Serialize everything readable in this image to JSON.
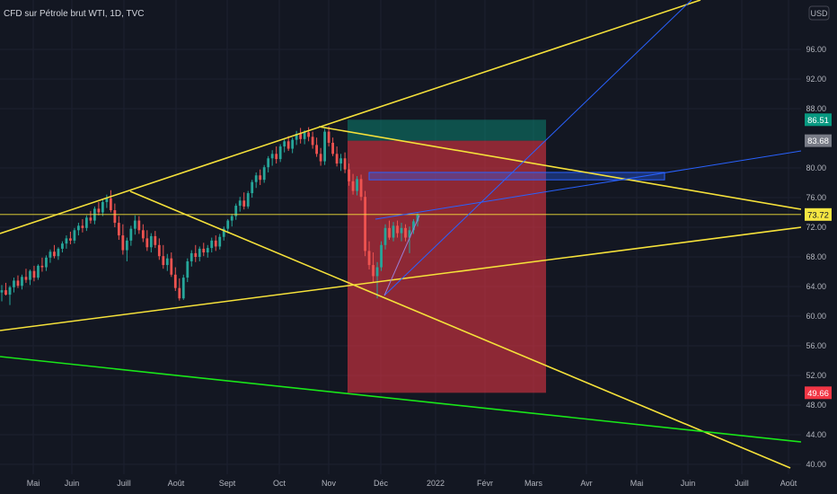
{
  "chart_data": {
    "type": "candlestick",
    "title": "CFD sur Pétrole brut WTI, 1D, TVC",
    "currency": "USD",
    "x_labels": [
      "Mai",
      "Juin",
      "Juill",
      "Août",
      "Sept",
      "Oct",
      "Nov",
      "Déc",
      "2022",
      "Févr",
      "Mars",
      "Avr",
      "Mai",
      "Juin",
      "Juill",
      "Août"
    ],
    "y_ticks": [
      "96.00",
      "92.00",
      "88.00",
      "80.00",
      "76.00",
      "72.00",
      "68.00",
      "64.00",
      "60.00",
      "56.00",
      "52.00",
      "48.00",
      "44.00",
      "40.00"
    ],
    "ylim": [
      40,
      100
    ],
    "price_tags": [
      {
        "label": "86.51",
        "value": 86.51,
        "color": "#089981",
        "text_color": "#ffffff"
      },
      {
        "label": "83.68",
        "value": 83.68,
        "color": "#787b86",
        "text_color": "#ffffff"
      },
      {
        "label": "73.72",
        "value": 73.72,
        "color": "#f5e642",
        "text_color": "#131722"
      },
      {
        "label": "49.66",
        "value": 49.66,
        "color": "#f23645",
        "text_color": "#ffffff"
      }
    ],
    "ohlc": [
      [
        63.2,
        64.2,
        62.0,
        63.5
      ],
      [
        63.5,
        64.5,
        62.8,
        62.9
      ],
      [
        62.9,
        64.1,
        61.5,
        63.9
      ],
      [
        63.9,
        65.2,
        63.2,
        64.8
      ],
      [
        64.8,
        65.5,
        63.8,
        64.1
      ],
      [
        64.1,
        65.6,
        63.6,
        65.3
      ],
      [
        65.3,
        66.4,
        64.5,
        64.9
      ],
      [
        64.9,
        66.3,
        64.2,
        66.1
      ],
      [
        66.1,
        66.8,
        64.7,
        65.2
      ],
      [
        65.2,
        67.0,
        64.9,
        66.8
      ],
      [
        66.8,
        67.9,
        66.0,
        66.6
      ],
      [
        66.6,
        68.2,
        66.1,
        67.9
      ],
      [
        67.9,
        69.0,
        67.2,
        68.7
      ],
      [
        68.7,
        69.6,
        67.8,
        68.1
      ],
      [
        68.1,
        69.3,
        67.6,
        69.1
      ],
      [
        69.1,
        70.1,
        68.6,
        69.8
      ],
      [
        69.8,
        70.9,
        69.1,
        70.5
      ],
      [
        70.5,
        71.4,
        69.7,
        70.2
      ],
      [
        70.2,
        71.9,
        69.8,
        71.6
      ],
      [
        71.6,
        72.6,
        70.9,
        72.2
      ],
      [
        72.2,
        73.1,
        71.3,
        71.9
      ],
      [
        71.9,
        73.6,
        71.5,
        73.3
      ],
      [
        73.3,
        74.2,
        72.5,
        72.9
      ],
      [
        72.9,
        74.8,
        72.4,
        74.5
      ],
      [
        74.5,
        75.4,
        73.6,
        74.0
      ],
      [
        74.0,
        75.8,
        73.5,
        75.4
      ],
      [
        75.4,
        76.4,
        74.6,
        75.9
      ],
      [
        75.9,
        77.0,
        74.0,
        74.3
      ],
      [
        74.3,
        75.2,
        72.0,
        72.6
      ],
      [
        72.6,
        73.5,
        70.3,
        70.9
      ],
      [
        70.9,
        72.4,
        68.3,
        68.9
      ],
      [
        68.9,
        70.6,
        67.4,
        70.2
      ],
      [
        70.2,
        72.2,
        69.5,
        71.8
      ],
      [
        71.8,
        73.6,
        71.0,
        72.9
      ],
      [
        72.9,
        73.5,
        71.1,
        71.6
      ],
      [
        71.6,
        72.4,
        70.0,
        70.5
      ],
      [
        70.5,
        71.6,
        68.8,
        69.3
      ],
      [
        69.3,
        71.2,
        68.6,
        70.8
      ],
      [
        70.8,
        71.5,
        69.2,
        69.6
      ],
      [
        69.6,
        70.5,
        67.6,
        68.1
      ],
      [
        68.1,
        69.6,
        66.4,
        66.9
      ],
      [
        66.9,
        68.4,
        66.1,
        67.8
      ],
      [
        67.8,
        68.6,
        65.3,
        65.6
      ],
      [
        65.6,
        66.6,
        63.4,
        63.8
      ],
      [
        63.8,
        65.1,
        62.1,
        62.4
      ],
      [
        62.4,
        65.6,
        62.2,
        65.2
      ],
      [
        65.2,
        67.8,
        64.6,
        67.4
      ],
      [
        67.4,
        68.9,
        66.7,
        68.5
      ],
      [
        68.5,
        69.6,
        67.3,
        68.0
      ],
      [
        68.0,
        69.4,
        67.4,
        69.1
      ],
      [
        69.1,
        69.9,
        68.1,
        68.6
      ],
      [
        68.6,
        69.6,
        67.9,
        69.2
      ],
      [
        69.2,
        70.6,
        68.6,
        70.2
      ],
      [
        70.2,
        70.9,
        68.8,
        69.4
      ],
      [
        69.4,
        71.1,
        69.0,
        70.7
      ],
      [
        70.7,
        72.1,
        70.2,
        71.8
      ],
      [
        71.8,
        73.1,
        71.2,
        72.9
      ],
      [
        72.9,
        73.8,
        72.1,
        73.5
      ],
      [
        73.5,
        75.2,
        73.0,
        74.9
      ],
      [
        74.9,
        76.1,
        74.1,
        75.6
      ],
      [
        75.6,
        76.7,
        74.4,
        74.8
      ],
      [
        74.8,
        76.9,
        74.5,
        76.6
      ],
      [
        76.6,
        78.4,
        76.0,
        78.1
      ],
      [
        78.1,
        79.4,
        77.3,
        79.0
      ],
      [
        79.0,
        79.8,
        77.7,
        78.4
      ],
      [
        78.4,
        80.4,
        78.0,
        80.1
      ],
      [
        80.1,
        81.6,
        79.4,
        81.3
      ],
      [
        81.3,
        82.4,
        80.3,
        81.9
      ],
      [
        81.9,
        82.9,
        80.6,
        81.2
      ],
      [
        81.2,
        83.2,
        80.8,
        82.9
      ],
      [
        82.9,
        84.0,
        82.1,
        83.6
      ],
      [
        83.6,
        84.3,
        82.3,
        82.6
      ],
      [
        82.6,
        84.1,
        82.0,
        83.8
      ],
      [
        83.8,
        85.0,
        83.1,
        84.6
      ],
      [
        84.6,
        85.4,
        83.3,
        83.9
      ],
      [
        83.9,
        85.1,
        83.2,
        84.8
      ],
      [
        84.8,
        85.5,
        83.6,
        84.2
      ],
      [
        84.2,
        84.9,
        82.6,
        83.1
      ],
      [
        83.1,
        84.1,
        81.5,
        81.9
      ],
      [
        81.9,
        82.7,
        80.3,
        80.9
      ],
      [
        80.9,
        85.3,
        80.4,
        84.9
      ],
      [
        84.9,
        85.6,
        82.9,
        83.4
      ],
      [
        83.4,
        84.1,
        81.6,
        81.9
      ],
      [
        81.9,
        82.9,
        80.2,
        80.6
      ],
      [
        80.6,
        81.9,
        79.6,
        81.3
      ],
      [
        81.3,
        82.1,
        79.3,
        79.8
      ],
      [
        79.8,
        80.6,
        77.6,
        78.2
      ],
      [
        78.2,
        79.2,
        76.4,
        76.9
      ],
      [
        76.9,
        78.9,
        76.3,
        78.5
      ],
      [
        78.5,
        79.1,
        75.6,
        76.1
      ],
      [
        76.1,
        76.9,
        68.1,
        68.8
      ],
      [
        68.8,
        70.1,
        66.3,
        66.9
      ],
      [
        66.9,
        68.6,
        64.6,
        65.4
      ],
      [
        65.4,
        67.3,
        62.4,
        66.6
      ],
      [
        66.6,
        70.1,
        66.1,
        69.6
      ],
      [
        69.6,
        72.4,
        69.0,
        71.9
      ],
      [
        71.9,
        72.9,
        70.3,
        70.6
      ],
      [
        70.6,
        72.7,
        70.1,
        72.2
      ],
      [
        72.2,
        72.9,
        70.6,
        71.2
      ],
      [
        71.2,
        72.6,
        70.1,
        71.9
      ],
      [
        71.9,
        72.4,
        70.1,
        70.6
      ],
      [
        70.6,
        72.1,
        68.5,
        71.6
      ],
      [
        71.6,
        73.1,
        71.1,
        72.8
      ],
      [
        72.8,
        73.9,
        72.1,
        73.7
      ]
    ],
    "drawings": {
      "short_position": {
        "entry": 83.68,
        "target": 49.66,
        "stop": 86.51
      },
      "trendlines": [
        "channel-top",
        "channel-bottom",
        "descending-line-1",
        "descending-line-2",
        "horizontal-73.72",
        "green-support"
      ],
      "zone": {
        "top": 79.4,
        "bottom": 78.4
      }
    }
  }
}
